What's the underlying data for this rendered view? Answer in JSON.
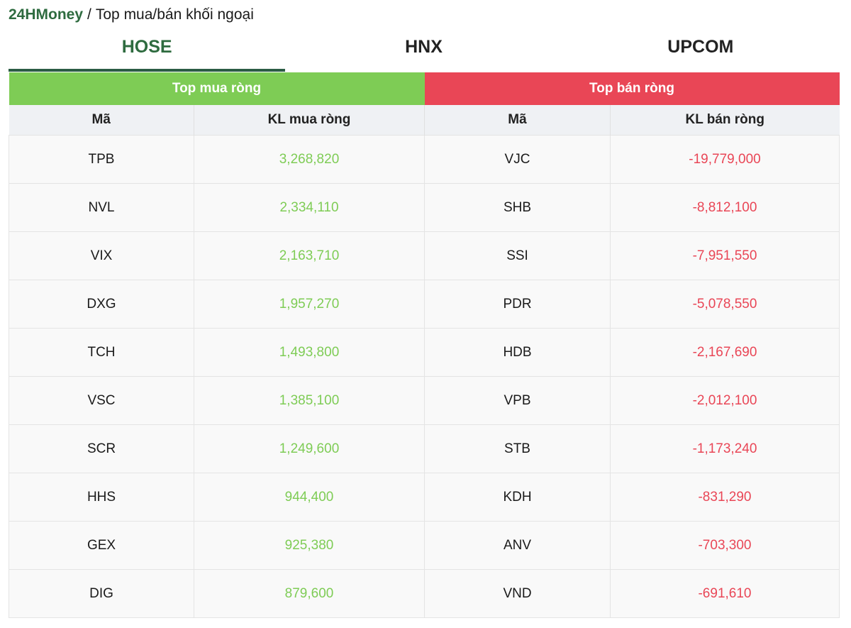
{
  "breadcrumb": {
    "brand": "24HMoney",
    "separator": "/",
    "page": "Top mua/bán khối ngoại"
  },
  "tabs": [
    {
      "label": "HOSE",
      "active": true
    },
    {
      "label": "HNX",
      "active": false
    },
    {
      "label": "UPCOM",
      "active": false
    }
  ],
  "colors": {
    "buy": "#7ecc55",
    "sell": "#e94656",
    "brand": "#2e6b3f"
  },
  "sections": {
    "buy_title": "Top mua ròng",
    "sell_title": "Top bán ròng"
  },
  "columns": {
    "code": "Mã",
    "buy_volume": "KL mua ròng",
    "sell_volume": "KL bán ròng"
  },
  "rows": [
    {
      "buy_code": "TPB",
      "buy_volume": "3,268,820",
      "sell_code": "VJC",
      "sell_volume": "-19,779,000"
    },
    {
      "buy_code": "NVL",
      "buy_volume": "2,334,110",
      "sell_code": "SHB",
      "sell_volume": "-8,812,100"
    },
    {
      "buy_code": "VIX",
      "buy_volume": "2,163,710",
      "sell_code": "SSI",
      "sell_volume": "-7,951,550"
    },
    {
      "buy_code": "DXG",
      "buy_volume": "1,957,270",
      "sell_code": "PDR",
      "sell_volume": "-5,078,550"
    },
    {
      "buy_code": "TCH",
      "buy_volume": "1,493,800",
      "sell_code": "HDB",
      "sell_volume": "-2,167,690"
    },
    {
      "buy_code": "VSC",
      "buy_volume": "1,385,100",
      "sell_code": "VPB",
      "sell_volume": "-2,012,100"
    },
    {
      "buy_code": "SCR",
      "buy_volume": "1,249,600",
      "sell_code": "STB",
      "sell_volume": "-1,173,240"
    },
    {
      "buy_code": "HHS",
      "buy_volume": "944,400",
      "sell_code": "KDH",
      "sell_volume": "-831,290"
    },
    {
      "buy_code": "GEX",
      "buy_volume": "925,380",
      "sell_code": "ANV",
      "sell_volume": "-703,300"
    },
    {
      "buy_code": "DIG",
      "buy_volume": "879,600",
      "sell_code": "VND",
      "sell_volume": "-691,610"
    }
  ]
}
